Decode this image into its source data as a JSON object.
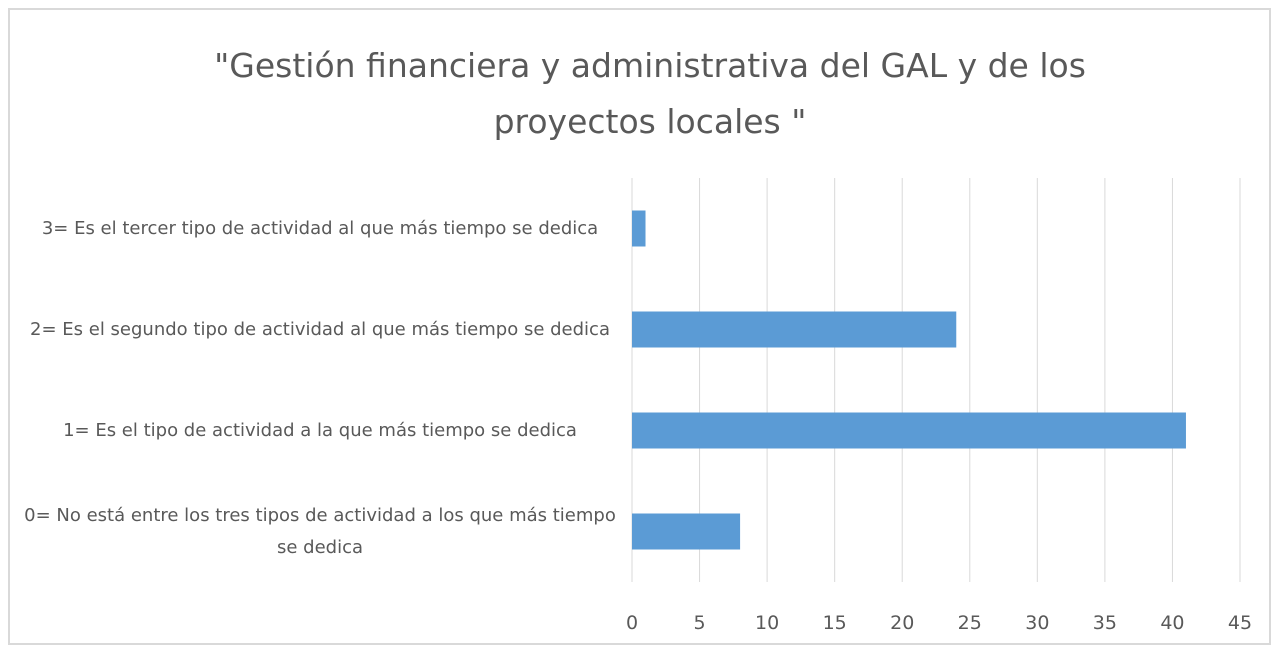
{
  "chart_data": {
    "type": "bar",
    "orientation": "horizontal",
    "title": "\"Gestión financiera y administrativa del GAL y de los proyectos locales \"",
    "categories": [
      "3= Es el tercer tipo de actividad al que más tiempo se dedica",
      "2= Es el segundo tipo de actividad al que más tiempo se dedica",
      "1= Es el tipo de actividad a la que más tiempo se dedica",
      "0= No está entre los tres tipos de actividad a los que más tiempo se dedica"
    ],
    "values": [
      1,
      24,
      41,
      8
    ],
    "color": "#5b9bd5",
    "xlim": [
      0,
      45
    ],
    "xticks": [
      0,
      5,
      10,
      15,
      20,
      25,
      30,
      35,
      40,
      45
    ],
    "grid": true
  }
}
